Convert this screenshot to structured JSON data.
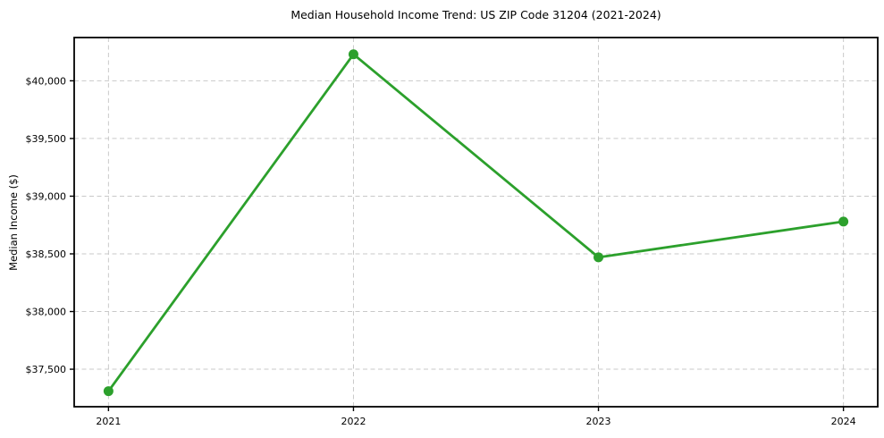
{
  "chart_data": {
    "type": "line",
    "title": "Median Household Income Trend: US ZIP Code 31204 (2021-2024)",
    "ylabel": "Median Income ($)",
    "xlabel": "",
    "x": [
      2021,
      2022,
      2023,
      2024
    ],
    "x_tick_labels": [
      "2021",
      "2022",
      "2023",
      "2024"
    ],
    "series": [
      {
        "values": [
          37310,
          40230,
          38470,
          38780
        ],
        "color": "#2ca02c"
      }
    ],
    "y_ticks": [
      {
        "value": 37500,
        "label": "$37,500"
      },
      {
        "value": 38000,
        "label": "$38,000"
      },
      {
        "value": 38500,
        "label": "$38,500"
      },
      {
        "value": 39000,
        "label": "$39,000"
      },
      {
        "value": 39500,
        "label": "$39,500"
      },
      {
        "value": 40000,
        "label": "$40,000"
      }
    ],
    "ylim": [
      37175,
      40375
    ],
    "xlim": [
      2020.86,
      2024.14
    ],
    "grid": true,
    "grid_color": "#c9c9c9",
    "axis_color": "#000000",
    "background_color": "#ffffff",
    "legend": "none"
  }
}
